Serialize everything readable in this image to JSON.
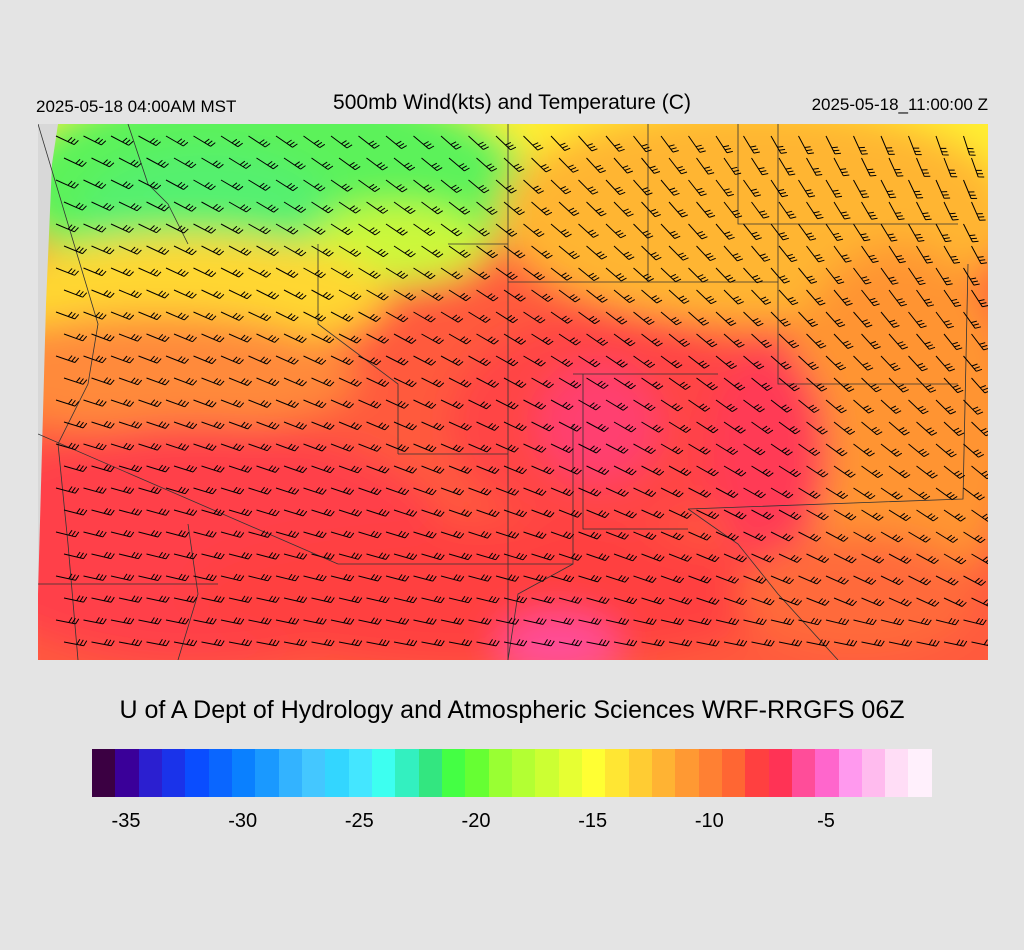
{
  "header": {
    "valid_local": "2025-05-18 04:00AM MST",
    "title": "500mb Wind(kts) and Temperature (C)",
    "valid_utc": "2025-05-18_11:00:00 Z"
  },
  "credit": "U of A Dept of Hydrology and Atmospheric Sciences WRF-RRGFS 06Z",
  "legend": {
    "colors": [
      "#3b0042",
      "#3a0099",
      "#2b1fd0",
      "#1a33ea",
      "#0a4dff",
      "#0a66ff",
      "#0a80ff",
      "#1a99ff",
      "#33b3ff",
      "#44c7ff",
      "#33d6ff",
      "#44e6ff",
      "#3dfff0",
      "#33f0c0",
      "#33e680",
      "#44ff44",
      "#66ff33",
      "#99ff33",
      "#b3ff33",
      "#ccff33",
      "#e6ff33",
      "#ffff33",
      "#ffe633",
      "#ffcc33",
      "#ffb333",
      "#ff9933",
      "#ff8033",
      "#ff6633",
      "#ff4040",
      "#ff3355",
      "#ff4d99",
      "#ff66cc",
      "#ff99ee",
      "#ffbbee",
      "#ffddf6",
      "#fff0fc"
    ],
    "tick_labels": [
      "-35",
      "-30",
      "-25",
      "-20",
      "-15",
      "-10",
      "-5"
    ]
  },
  "map": {
    "variable": "500mb temperature (C) with wind barbs (kts)",
    "background_color": "#d8d8d8"
  }
}
